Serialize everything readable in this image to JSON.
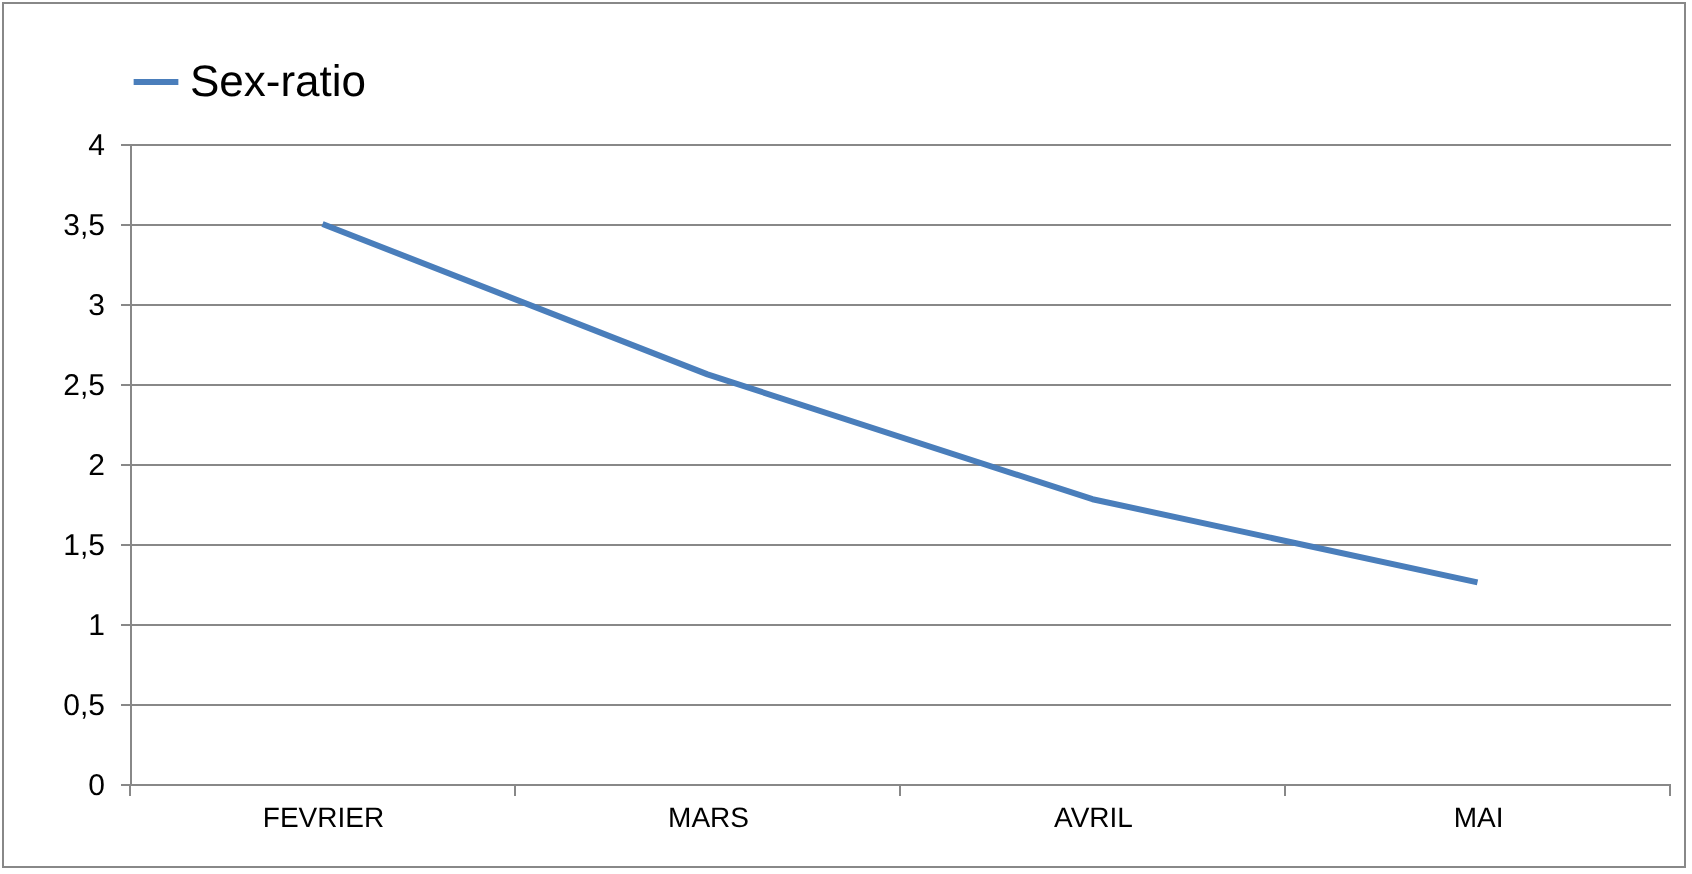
{
  "chart_data": {
    "type": "line",
    "categories": [
      "FEVRIER",
      "MARS",
      "AVRIL",
      "MAI"
    ],
    "series": [
      {
        "name": "Sex-ratio",
        "color": "#4a7ebb",
        "values": [
          3.5,
          2.56,
          1.78,
          1.26
        ]
      }
    ],
    "ylim": [
      0,
      4
    ],
    "yticks": [
      0,
      {
        "value": 0.5,
        "label": "0,5"
      },
      1,
      {
        "value": 1.5,
        "label": "1,5"
      },
      2,
      {
        "value": 2.5,
        "label": "2,5"
      },
      3,
      {
        "value": 3.5,
        "label": "3,5"
      },
      4
    ],
    "grid": "y",
    "legend": "top",
    "marker": "none"
  }
}
